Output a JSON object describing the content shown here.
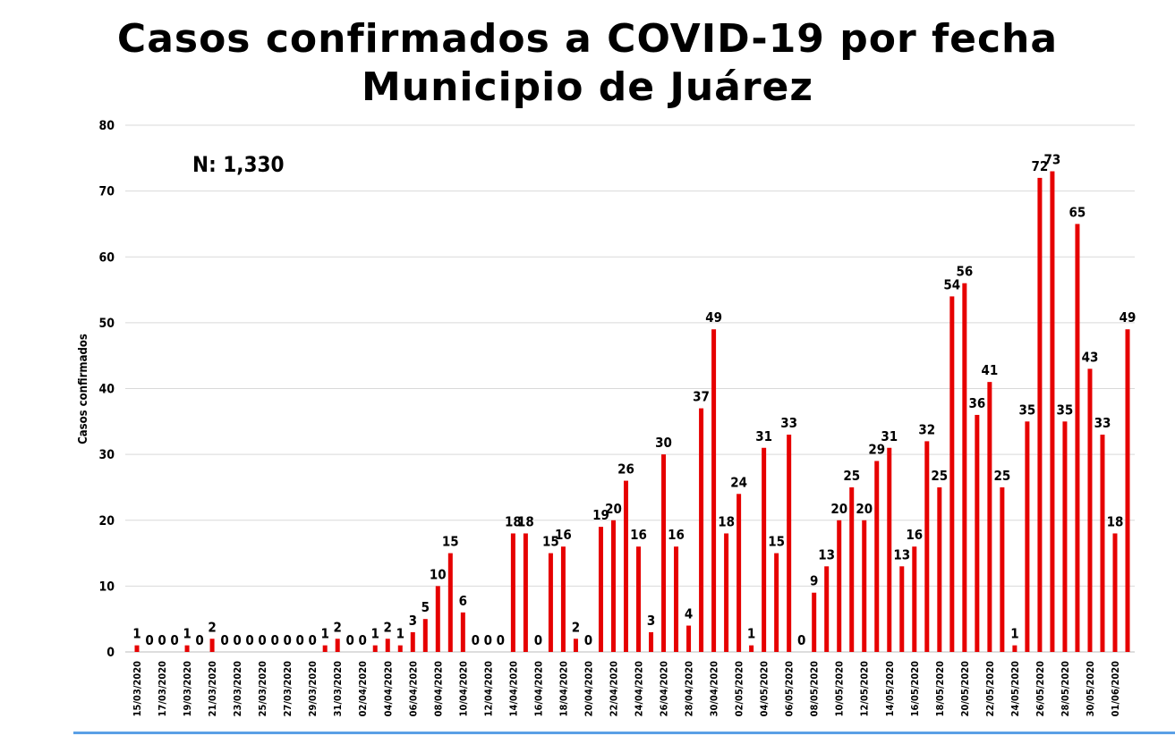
{
  "chart_data": {
    "type": "bar",
    "title": "Casos confirmados a COVID-19 por fecha",
    "subtitle": "Municipio de Juárez",
    "annotation": "N: 1,330",
    "xlabel": "",
    "ylabel": "Casos confirmados",
    "ylim": [
      0,
      80
    ],
    "yticks": [
      0,
      10,
      20,
      30,
      40,
      50,
      60,
      70,
      80
    ],
    "grid": true,
    "bar_color": "#e60000",
    "start_date": "15/03/2020",
    "tick_labels": [
      "15/03/2020",
      "17/03/2020",
      "19/03/2020",
      "21/03/2020",
      "23/03/2020",
      "25/03/2020",
      "27/03/2020",
      "29/03/2020",
      "31/03/2020",
      "02/04/2020",
      "04/04/2020",
      "06/04/2020",
      "08/04/2020",
      "10/04/2020",
      "12/04/2020",
      "14/04/2020",
      "16/04/2020",
      "18/04/2020",
      "20/04/2020",
      "22/04/2020",
      "24/04/2020",
      "26/04/2020",
      "28/04/2020",
      "30/04/2020",
      "02/05/2020",
      "04/05/2020",
      "06/05/2020",
      "08/05/2020",
      "10/05/2020",
      "12/05/2020",
      "14/05/2020",
      "16/05/2020",
      "18/05/2020",
      "20/05/2020",
      "22/05/2020",
      "24/05/2020",
      "26/05/2020",
      "28/05/2020",
      "30/05/2020",
      "01/06/2020"
    ],
    "values": [
      1,
      0,
      0,
      0,
      1,
      0,
      2,
      0,
      0,
      0,
      0,
      0,
      0,
      0,
      0,
      1,
      2,
      0,
      0,
      1,
      2,
      1,
      3,
      5,
      10,
      15,
      6,
      0,
      0,
      0,
      18,
      18,
      0,
      15,
      16,
      2,
      0,
      19,
      20,
      26,
      16,
      3,
      30,
      16,
      4,
      37,
      49,
      18,
      24,
      1,
      31,
      15,
      33,
      0,
      9,
      13,
      20,
      25,
      20,
      29,
      31,
      13,
      16,
      32,
      25,
      54,
      56,
      36,
      41,
      25,
      1,
      35,
      72,
      73,
      35,
      65,
      43,
      33,
      18,
      49
    ]
  }
}
